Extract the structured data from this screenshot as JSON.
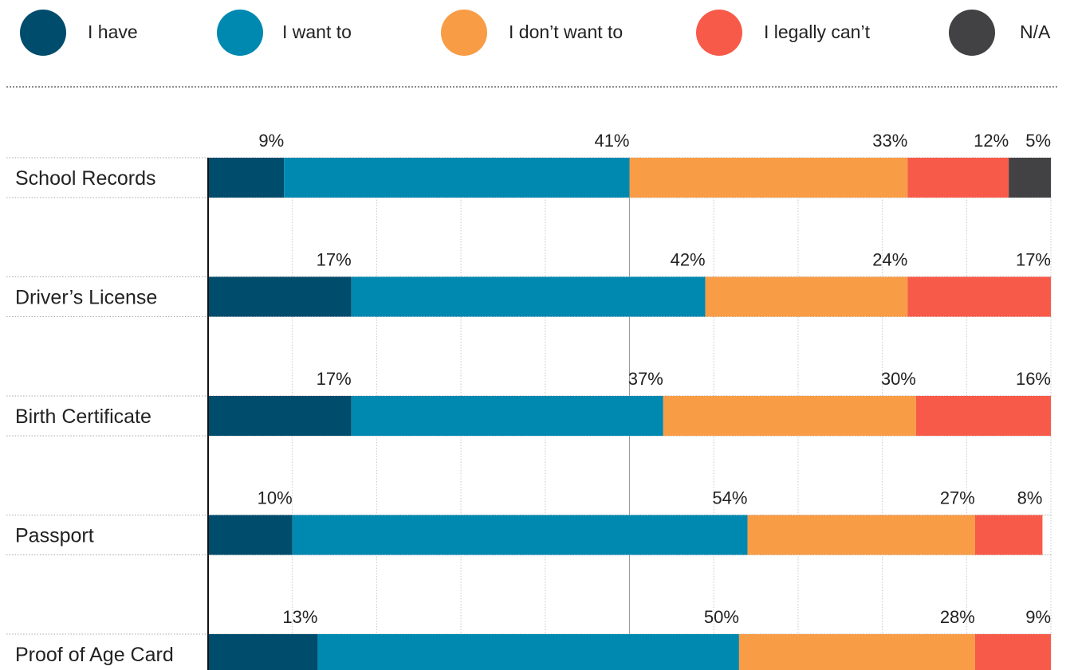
{
  "legend": [
    {
      "label": "I have",
      "color": "#004c6d"
    },
    {
      "label": "I want to",
      "color": "#0089b0"
    },
    {
      "label": "I don’t want to",
      "color": "#f89c46"
    },
    {
      "label": "I legally can’t",
      "color": "#f85a4a"
    },
    {
      "label": "N/A",
      "color": "#424244"
    }
  ],
  "chart_data": {
    "type": "bar",
    "orientation": "horizontal",
    "stacked": true,
    "xlim": [
      0,
      100
    ],
    "grid": true,
    "legend_position": "top",
    "categories": [
      "School Records",
      "Driver’s License",
      "Birth Certificate",
      "Passport",
      "Proof of Age Card"
    ],
    "series": [
      {
        "name": "I have",
        "color": "#004c6d",
        "values": [
          9,
          17,
          17,
          10,
          13
        ]
      },
      {
        "name": "I want to",
        "color": "#0089b0",
        "values": [
          41,
          42,
          37,
          54,
          50
        ]
      },
      {
        "name": "I don’t want to",
        "color": "#f89c46",
        "values": [
          33,
          24,
          30,
          27,
          28
        ]
      },
      {
        "name": "I legally can’t",
        "color": "#f85a4a",
        "values": [
          12,
          17,
          16,
          8,
          9
        ]
      },
      {
        "name": "N/A",
        "color": "#424244",
        "values": [
          5,
          0,
          0,
          0,
          0
        ]
      }
    ],
    "data_labels": [
      [
        "9%",
        "41%",
        "33%",
        "12%",
        "5%"
      ],
      [
        "17%",
        "42%",
        "24%",
        "17%",
        ""
      ],
      [
        "17%",
        "37%",
        "30%",
        "16%",
        ""
      ],
      [
        "10%",
        "54%",
        "27%",
        "8%",
        ""
      ],
      [
        "13%",
        "50%",
        "28%",
        "9%",
        ""
      ]
    ]
  }
}
